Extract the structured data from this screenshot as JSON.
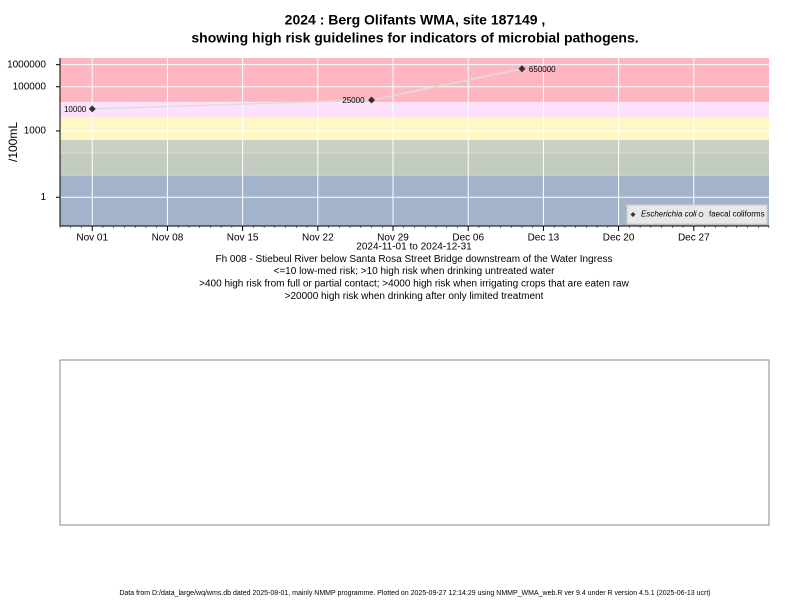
{
  "chart_data": {
    "type": "line",
    "title": "2024 : Berg Olifants WMA, site 187149 ,",
    "title2": "showing high risk guidelines for indicators of microbial pathogens.",
    "subtitle": [
      "2024-11-01 to 2024-12-31",
      "Fh 008 - Stiebeul River below Santa Rosa Street Bridge downstream of the Water Ingress",
      "<=10 low-med risk; >10 high risk when drinking untreated water",
      ">400 high risk from full or partial contact; >4000 high risk when irrigating crops that are eaten raw",
      ">20000 high risk when drinking after only limited treatment"
    ],
    "ylabel": "/100mL",
    "footer": "Data from D:/data_large/wq/wms.db dated 2025-08-01, mainly NMMP programme. Plotted on 2025-09-27 12:14:29 using NMMP_WMA_web.R ver 9.4 under R version 4.5.1 (2025-06-13 ucrt)",
    "x": [
      "2024-11-01",
      "2024-11-27",
      "2024-12-11"
    ],
    "series": [
      {
        "name": "Escherichia coli",
        "color": "#333333",
        "line_color": "#dddddd",
        "values": [
          10000,
          25000,
          650000
        ]
      },
      {
        "name": "faecal coliforms",
        "color": "#333333",
        "values": [
          null,
          null,
          null
        ]
      }
    ],
    "log_y": true,
    "ylim": [
      0.05,
      2000000
    ],
    "yticks": [
      1,
      1000,
      100000,
      1000000
    ],
    "xlim": [
      "2024-10-29",
      "2025-01-03"
    ],
    "xticks": [
      {
        "value": "2024-11-01",
        "label": "Nov 01"
      },
      {
        "value": "2024-11-08",
        "label": "Nov 08"
      },
      {
        "value": "2024-11-15",
        "label": "Nov 15"
      },
      {
        "value": "2024-11-22",
        "label": "Nov 22"
      },
      {
        "value": "2024-11-29",
        "label": "Nov 29"
      },
      {
        "value": "2024-12-06",
        "label": "Dec 06"
      },
      {
        "value": "2024-12-13",
        "label": "Dec 13"
      },
      {
        "value": "2024-12-20",
        "label": "Dec 20"
      },
      {
        "value": "2024-12-27",
        "label": "Dec 27"
      }
    ],
    "guidelines": [
      10,
      100,
      400,
      4000,
      20000
    ],
    "band_colors": [
      "#a3b3cc",
      "#c2cbbf",
      "#c9d1c2",
      "#fff8c4",
      "#fde0fb",
      "#ffb6c1"
    ],
    "grid": true,
    "legend": "bottom-right"
  }
}
